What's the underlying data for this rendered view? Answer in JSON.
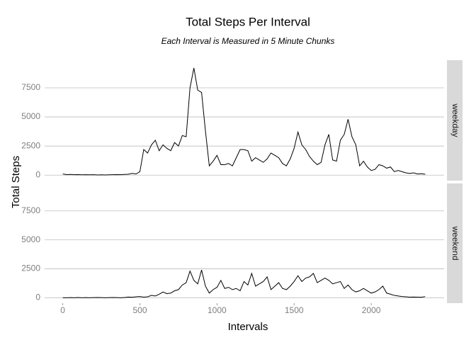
{
  "chart_data": {
    "type": "line",
    "title": "Total Steps Per Interval",
    "subtitle": "Each Interval is Measured in 5 Minute Chunks",
    "xlabel": "Intervals",
    "ylabel": "Total Steps",
    "xlim": [
      -117.75,
      2472.75
    ],
    "xticks": [
      0,
      500,
      1000,
      1500,
      2000
    ],
    "ylim": [
      -470,
      9870
    ],
    "yticks": [
      0,
      2500,
      5000,
      7500
    ],
    "grid": true,
    "color": "#000000",
    "x": [
      0,
      25,
      50,
      75,
      100,
      125,
      150,
      175,
      200,
      225,
      250,
      275,
      300,
      325,
      350,
      375,
      400,
      425,
      450,
      475,
      500,
      525,
      550,
      575,
      600,
      625,
      650,
      675,
      700,
      725,
      750,
      775,
      800,
      825,
      850,
      875,
      900,
      925,
      950,
      975,
      1000,
      1025,
      1050,
      1075,
      1100,
      1125,
      1150,
      1175,
      1200,
      1225,
      1250,
      1275,
      1300,
      1325,
      1350,
      1375,
      1400,
      1425,
      1450,
      1475,
      1500,
      1525,
      1550,
      1575,
      1600,
      1625,
      1650,
      1675,
      1700,
      1725,
      1750,
      1775,
      1800,
      1825,
      1850,
      1875,
      1900,
      1925,
      1950,
      1975,
      2000,
      2025,
      2050,
      2075,
      2100,
      2125,
      2150,
      2175,
      2200,
      2225,
      2250,
      2275,
      2300,
      2325,
      2350
    ],
    "series": [
      {
        "name": "weekday",
        "values": [
          100,
          50,
          60,
          40,
          50,
          30,
          40,
          30,
          40,
          20,
          30,
          20,
          30,
          40,
          50,
          40,
          60,
          80,
          150,
          100,
          300,
          2200,
          1900,
          2600,
          3000,
          2100,
          2600,
          2300,
          2100,
          2800,
          2500,
          3400,
          3300,
          7500,
          9200,
          7300,
          7100,
          3800,
          800,
          1200,
          1700,
          900,
          900,
          1000,
          800,
          1500,
          2200,
          2200,
          2100,
          1200,
          1500,
          1300,
          1100,
          1400,
          1900,
          1700,
          1500,
          1000,
          800,
          1400,
          2300,
          3700,
          2600,
          2200,
          1600,
          1200,
          900,
          1100,
          2600,
          3500,
          1300,
          1200,
          3000,
          3500,
          4800,
          3300,
          2600,
          800,
          1200,
          700,
          400,
          500,
          900,
          800,
          600,
          700,
          300,
          400,
          300,
          200,
          150,
          200,
          100,
          120,
          80
        ]
      },
      {
        "name": "weekend",
        "values": [
          0,
          0,
          10,
          0,
          20,
          0,
          10,
          0,
          10,
          20,
          10,
          0,
          10,
          20,
          10,
          0,
          20,
          60,
          40,
          80,
          100,
          50,
          80,
          200,
          150,
          300,
          500,
          350,
          400,
          600,
          700,
          1100,
          1300,
          2300,
          1500,
          1200,
          2400,
          1000,
          400,
          700,
          900,
          1500,
          800,
          900,
          700,
          800,
          600,
          1400,
          1100,
          2100,
          1000,
          1200,
          1400,
          1800,
          700,
          1000,
          1300,
          800,
          700,
          1000,
          1400,
          1900,
          1400,
          1700,
          1800,
          2100,
          1300,
          1500,
          1700,
          1500,
          1200,
          1300,
          1400,
          800,
          1100,
          700,
          500,
          600,
          800,
          600,
          400,
          500,
          700,
          1000,
          400,
          300,
          200,
          150,
          100,
          80,
          50,
          60,
          50,
          40,
          100
        ]
      }
    ]
  }
}
